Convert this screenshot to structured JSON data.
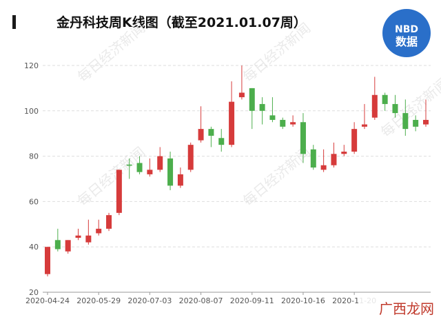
{
  "chart_data": {
    "type": "candlestick",
    "title": "金丹科技周K线图（截至2021.01.07周）",
    "logo": [
      "NBD",
      "数据"
    ],
    "watermark": "每日经济新闻",
    "corner_watermark": "广西龙网",
    "categories": [
      "2020-04-24",
      null,
      null,
      null,
      null,
      "2020-05-29",
      null,
      null,
      null,
      null,
      "2020-07-03",
      null,
      null,
      null,
      null,
      "2020-08-07",
      null,
      null,
      null,
      null,
      "2020-09-11",
      null,
      null,
      null,
      null,
      "2020-10-16",
      null,
      null,
      null,
      null,
      "2020-11-20",
      null,
      null,
      null,
      null,
      null,
      null,
      null
    ],
    "open": [
      28,
      43,
      38,
      44,
      42,
      46,
      48,
      55,
      76.3,
      77,
      72,
      74,
      79,
      67,
      74,
      87,
      92,
      88,
      85,
      106,
      110,
      103,
      98,
      96,
      94,
      95,
      83,
      74,
      76,
      81,
      82,
      93,
      97,
      107,
      103,
      99,
      96,
      94
    ],
    "high": [
      40,
      48,
      43,
      48,
      52,
      52,
      55,
      74,
      79,
      80,
      79,
      84,
      82,
      75,
      86,
      102,
      93,
      92,
      113,
      120,
      110,
      106,
      106,
      97,
      98,
      99,
      85,
      83,
      86,
      85,
      95,
      103,
      115,
      108,
      107,
      105,
      98,
      105
    ],
    "low": [
      27,
      38,
      37,
      43,
      41,
      45,
      47,
      54,
      70,
      72,
      71,
      73,
      65,
      66,
      73,
      86,
      84,
      82,
      84,
      105,
      92,
      94,
      95,
      92,
      93,
      77,
      74,
      73,
      75,
      80,
      81,
      92,
      96,
      100,
      97,
      89,
      91,
      93
    ],
    "close": [
      40,
      39,
      43,
      45,
      45,
      48,
      54,
      74,
      75.8,
      73,
      74,
      80,
      67,
      72,
      85,
      92,
      89,
      85,
      104,
      108,
      100,
      100,
      96,
      93,
      95,
      81,
      75,
      76,
      81,
      82,
      92,
      94,
      107,
      103,
      99,
      92,
      93,
      96
    ],
    "up_color": "#d63b3b",
    "down_color": "#4cae4c",
    "ylim": [
      20,
      120
    ],
    "yticks": [
      20,
      40,
      60,
      80,
      100,
      120
    ],
    "grid": true
  }
}
